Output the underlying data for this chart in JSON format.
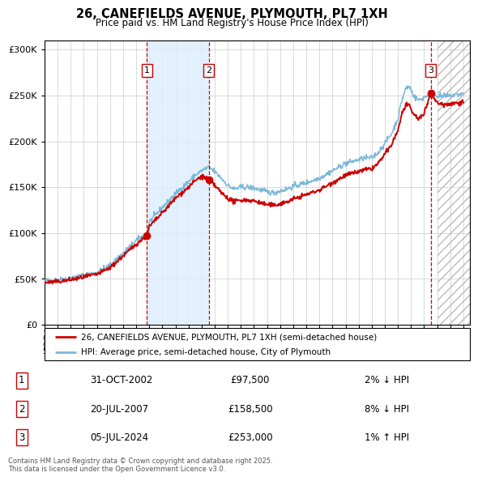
{
  "title": "26, CANEFIELDS AVENUE, PLYMOUTH, PL7 1XH",
  "subtitle": "Price paid vs. HM Land Registry's House Price Index (HPI)",
  "xlim_start": 1995.0,
  "xlim_end": 2027.5,
  "ylim": [
    0,
    310000
  ],
  "yticks": [
    0,
    50000,
    100000,
    150000,
    200000,
    250000,
    300000
  ],
  "ytick_labels": [
    "£0",
    "£50K",
    "£100K",
    "£150K",
    "£200K",
    "£250K",
    "£300K"
  ],
  "xtick_years": [
    1995,
    1996,
    1997,
    1998,
    1999,
    2000,
    2001,
    2002,
    2003,
    2004,
    2005,
    2006,
    2007,
    2008,
    2009,
    2010,
    2011,
    2012,
    2013,
    2014,
    2015,
    2016,
    2017,
    2018,
    2019,
    2020,
    2021,
    2022,
    2023,
    2024,
    2025,
    2026,
    2027
  ],
  "sale1_date": 2002.83,
  "sale1_price": 97500,
  "sale1_label": "1",
  "sale2_date": 2007.55,
  "sale2_price": 158500,
  "sale2_label": "2",
  "sale3_date": 2024.5,
  "sale3_price": 253000,
  "sale3_label": "3",
  "hpi_line_color": "#7ab8d9",
  "price_line_color": "#cc0000",
  "marker_color": "#cc0000",
  "sale_vline_color": "#cc0000",
  "shade_between_color": "#ddeeff",
  "grid_color": "#cccccc",
  "background_color": "#ffffff",
  "legend_entry1": "26, CANEFIELDS AVENUE, PLYMOUTH, PL7 1XH (semi-detached house)",
  "legend_entry2": "HPI: Average price, semi-detached house, City of Plymouth",
  "table_rows": [
    {
      "num": "1",
      "date": "31-OCT-2002",
      "price": "£97,500",
      "hpi": "2% ↓ HPI"
    },
    {
      "num": "2",
      "date": "20-JUL-2007",
      "price": "£158,500",
      "hpi": "8% ↓ HPI"
    },
    {
      "num": "3",
      "date": "05-JUL-2024",
      "price": "£253,000",
      "hpi": "1% ↑ HPI"
    }
  ],
  "footnote": "Contains HM Land Registry data © Crown copyright and database right 2025.\nThis data is licensed under the Open Government Licence v3.0."
}
